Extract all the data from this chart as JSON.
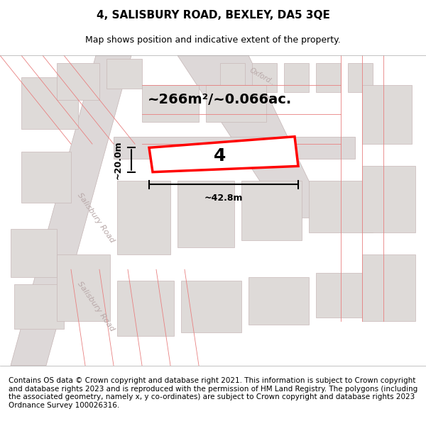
{
  "title": "4, SALISBURY ROAD, BEXLEY, DA5 3QE",
  "subtitle": "Map shows position and indicative extent of the property.",
  "area_text": "~266m²/~0.066ac.",
  "width_text": "~42.8m",
  "height_text": "~20.0m",
  "number_label": "4",
  "footer": "Contains OS data © Crown copyright and database right 2021. This information is subject to Crown copyright and database rights 2023 and is reproduced with the permission of HM Land Registry. The polygons (including the associated geometry, namely x, y co-ordinates) are subject to Crown copyright and database rights 2023 Ordnance Survey 100026316.",
  "bg_color": "#f0eeee",
  "map_bg": "#f0eeee",
  "road_fill": "#e8e4e4",
  "road_line": "#d9c8c8",
  "red_line": "#ff0000",
  "black": "#000000",
  "white": "#ffffff",
  "title_fontsize": 11,
  "subtitle_fontsize": 9,
  "footer_fontsize": 7.5
}
